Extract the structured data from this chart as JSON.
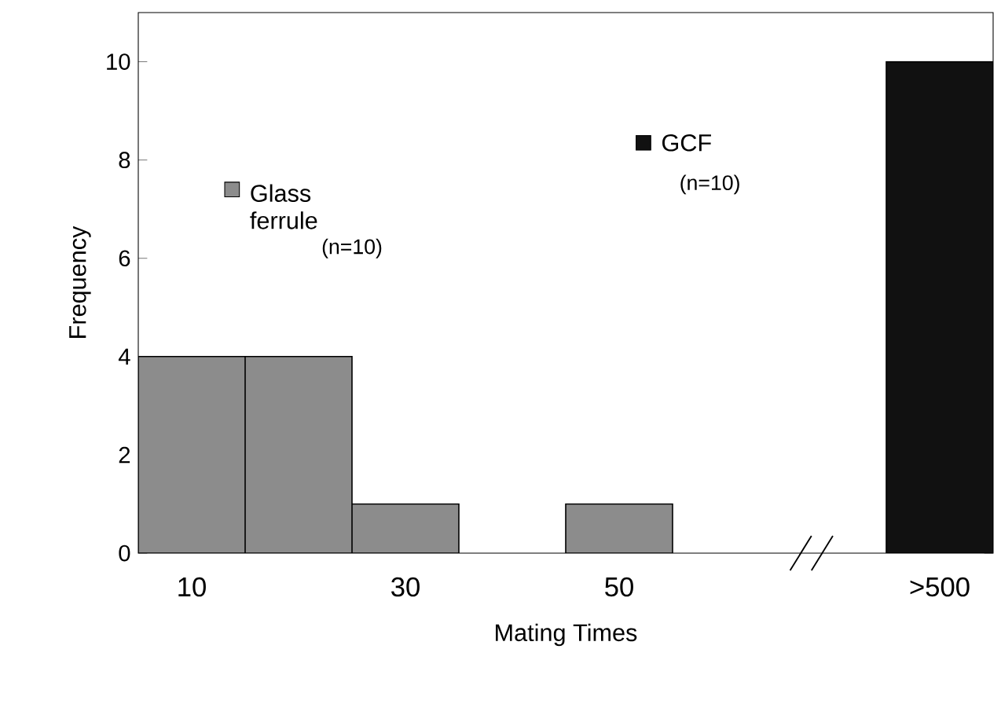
{
  "chart_data": {
    "type": "bar",
    "xlabel": "Mating Times",
    "ylabel": "Frequency",
    "categories": [
      "10",
      null,
      "30",
      null,
      "50",
      null,
      null,
      ">500"
    ],
    "series": [
      {
        "name": "Glass ferrule",
        "color": "#8c8c8c",
        "values": [
          4,
          4,
          1,
          null,
          1,
          null,
          null,
          null
        ]
      },
      {
        "name": "GCF",
        "color": "#111111",
        "values": [
          null,
          null,
          null,
          null,
          null,
          null,
          null,
          10
        ]
      }
    ],
    "ylim": [
      0,
      11
    ],
    "yticks": [
      0,
      2,
      4,
      6,
      8,
      10
    ],
    "legend": "top",
    "grid": false,
    "annotations": [
      "(n=10)",
      "(n=10)"
    ]
  }
}
